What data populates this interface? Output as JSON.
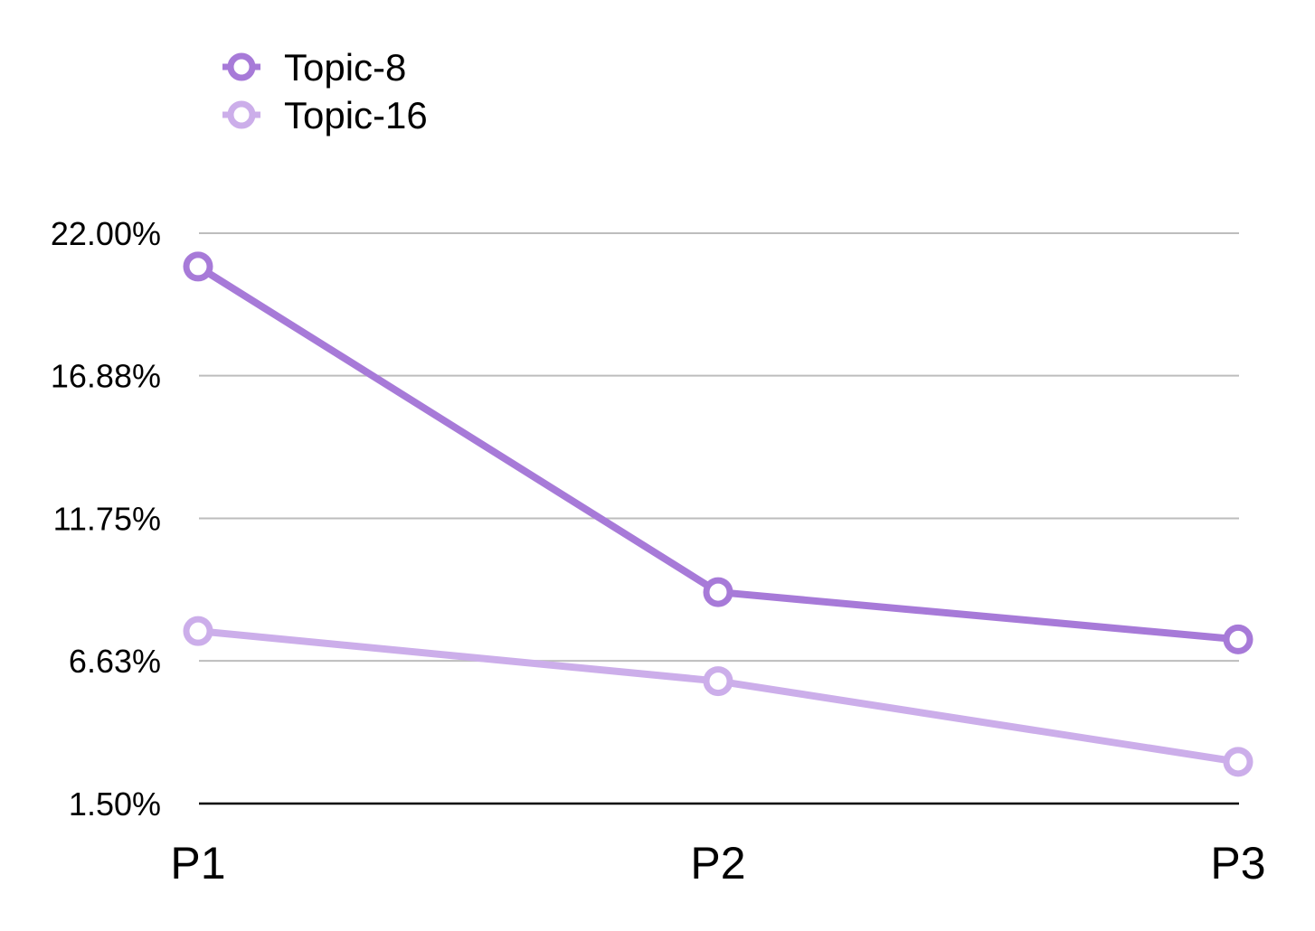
{
  "chart_data": {
    "type": "line",
    "categories": [
      "P1",
      "P2",
      "P3"
    ],
    "series": [
      {
        "name": "Topic-8",
        "values": [
          20.8,
          9.1,
          7.4
        ],
        "color": "#a77ad8"
      },
      {
        "name": "Topic-16",
        "values": [
          7.7,
          5.9,
          3.0
        ],
        "color": "#ccaeea"
      }
    ],
    "y_ticks": [
      "22.00%",
      "16.88%",
      "11.75%",
      "6.63%",
      "1.50%"
    ],
    "y_tick_values": [
      22.0,
      16.88,
      11.75,
      6.63,
      1.5
    ],
    "ylim": [
      1.5,
      22.0
    ],
    "grid": true,
    "legend": "top-left",
    "title": "",
    "xlabel": "",
    "ylabel": ""
  }
}
